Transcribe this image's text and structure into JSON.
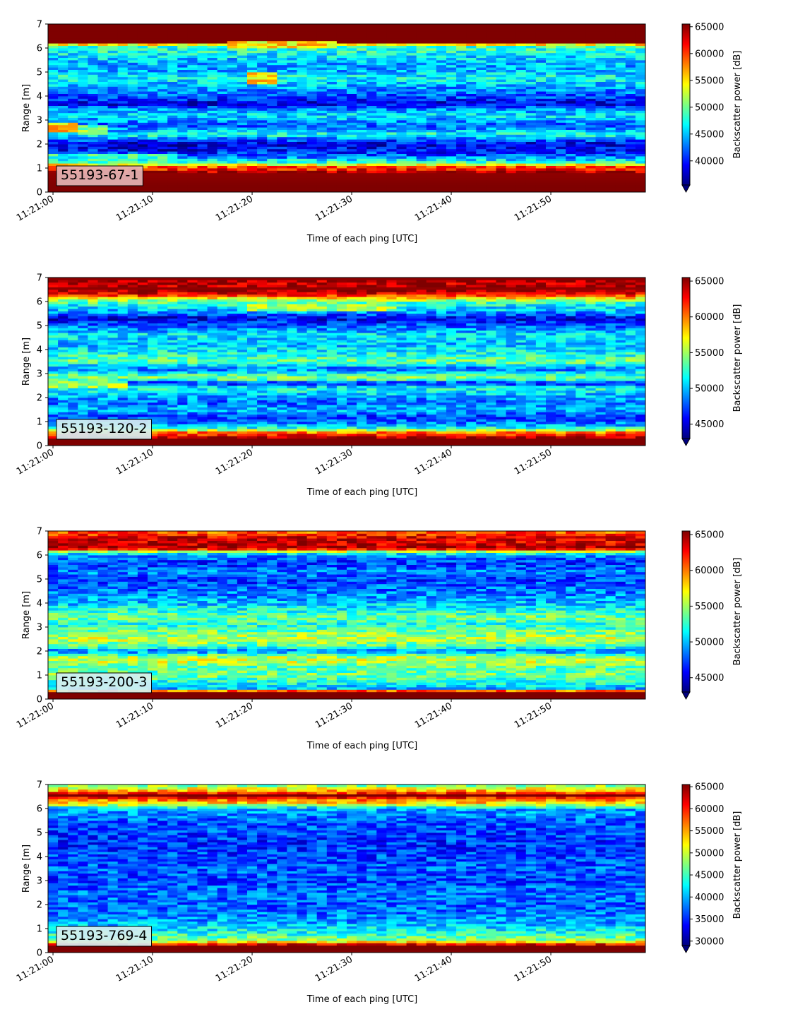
{
  "figure": {
    "panel_count": 4
  },
  "colormap": [
    "#00007f",
    "#0000ff",
    "#007fff",
    "#00ffff",
    "#7fff7f",
    "#ffff00",
    "#ff7f00",
    "#ff0000",
    "#7f0000"
  ],
  "chart_data": [
    {
      "type": "heatmap",
      "label": "55193-67-1",
      "label_bg": "#e4b4b4",
      "xlabel": "Time of each ping [UTC]",
      "ylabel": "Range [m]",
      "colorbar_label": "Backscatter power [dB]",
      "x_tick_labels": [
        "11:21:00",
        "11:21:10",
        "11:21:20",
        "11:21:30",
        "11:21:40",
        "11:21:50"
      ],
      "x_tick_seconds": [
        0,
        10,
        20,
        30,
        40,
        50
      ],
      "xlim_seconds": [
        -0.5,
        59.5
      ],
      "y_ticks": [
        0,
        1,
        2,
        3,
        4,
        5,
        6,
        7
      ],
      "ylim": [
        0,
        7
      ],
      "colorbar_ticks": [
        40000,
        45000,
        50000,
        55000,
        60000,
        65000
      ],
      "clim": [
        35500,
        65500
      ],
      "colorbar_extend": "min",
      "range_profile": [
        [
          0.0,
          65500
        ],
        [
          0.2,
          65500
        ],
        [
          0.3,
          65500
        ],
        [
          0.8,
          65000
        ],
        [
          1.1,
          58000
        ],
        [
          1.2,
          50000
        ],
        [
          1.4,
          44000
        ],
        [
          1.6,
          41000
        ],
        [
          1.8,
          39500
        ],
        [
          2.0,
          38500
        ],
        [
          2.2,
          42000
        ],
        [
          2.4,
          48000
        ],
        [
          2.6,
          44000
        ],
        [
          2.8,
          42000
        ],
        [
          3.2,
          46000
        ],
        [
          3.5,
          43000
        ],
        [
          3.7,
          38000
        ],
        [
          3.9,
          41000
        ],
        [
          4.2,
          43000
        ],
        [
          4.5,
          45000
        ],
        [
          4.8,
          47000
        ],
        [
          5.1,
          44000
        ],
        [
          5.5,
          45000
        ],
        [
          5.8,
          47000
        ],
        [
          6.1,
          49000
        ],
        [
          6.25,
          65500
        ],
        [
          7.0,
          65500
        ]
      ],
      "features": [
        {
          "t": [
            0,
            2.5
          ],
          "r": [
            2.5,
            2.9
          ],
          "v": 56000
        },
        {
          "t": [
            2.5,
            5
          ],
          "r": [
            2.4,
            2.8
          ],
          "v": 50000
        },
        {
          "t": [
            0,
            12
          ],
          "r": [
            1.3,
            1.6
          ],
          "v": 48000
        },
        {
          "t": [
            20,
            22
          ],
          "r": [
            4.5,
            5.0
          ],
          "v": 55000
        },
        {
          "t": [
            8,
            14
          ],
          "r": [
            1.7,
            2.1
          ],
          "v": 37000
        },
        {
          "t": [
            18,
            28
          ],
          "r": [
            6.0,
            6.25
          ],
          "v": 55000
        }
      ]
    },
    {
      "type": "heatmap",
      "label": "55193-120-2",
      "label_bg": "#d6eef0",
      "xlabel": "Time of each ping [UTC]",
      "ylabel": "Range [m]",
      "colorbar_label": "Backscatter power [dB]",
      "x_tick_labels": [
        "11:21:00",
        "11:21:10",
        "11:21:20",
        "11:21:30",
        "11:21:40",
        "11:21:50"
      ],
      "x_tick_seconds": [
        0,
        10,
        20,
        30,
        40,
        50
      ],
      "xlim_seconds": [
        -0.5,
        59.5
      ],
      "y_ticks": [
        0,
        1,
        2,
        3,
        4,
        5,
        6,
        7
      ],
      "ylim": [
        0,
        7
      ],
      "colorbar_ticks": [
        45000,
        50000,
        55000,
        60000,
        65000
      ],
      "clim": [
        43000,
        65500
      ],
      "colorbar_extend": "min",
      "range_profile": [
        [
          0.0,
          65500
        ],
        [
          0.3,
          65500
        ],
        [
          0.55,
          60000
        ],
        [
          0.7,
          53000
        ],
        [
          0.9,
          49000
        ],
        [
          1.2,
          47000
        ],
        [
          1.5,
          50000
        ],
        [
          1.8,
          48000
        ],
        [
          2.1,
          50000
        ],
        [
          2.4,
          52000
        ],
        [
          2.6,
          46000
        ],
        [
          2.8,
          55000
        ],
        [
          3.0,
          52000
        ],
        [
          3.2,
          48000
        ],
        [
          3.5,
          54000
        ],
        [
          3.8,
          52000
        ],
        [
          4.2,
          50000
        ],
        [
          4.6,
          51000
        ],
        [
          5.0,
          48000
        ],
        [
          5.3,
          45000
        ],
        [
          5.6,
          50000
        ],
        [
          5.9,
          52000
        ],
        [
          6.1,
          56000
        ],
        [
          6.3,
          63000
        ],
        [
          6.5,
          65500
        ],
        [
          6.7,
          64000
        ],
        [
          7.0,
          65500
        ]
      ],
      "features": [
        {
          "t": [
            0,
            7
          ],
          "r": [
            2.4,
            2.7
          ],
          "v": 55000
        },
        {
          "t": [
            20,
            34
          ],
          "r": [
            5.6,
            5.9
          ],
          "v": 55000
        }
      ]
    },
    {
      "type": "heatmap",
      "label": "55193-200-3",
      "label_bg": "#d6eef0",
      "xlabel": "Time of each ping [UTC]",
      "ylabel": "Range [m]",
      "colorbar_label": "Backscatter power [dB]",
      "x_tick_labels": [
        "11:21:00",
        "11:21:10",
        "11:21:20",
        "11:21:30",
        "11:21:40",
        "11:21:50"
      ],
      "x_tick_seconds": [
        0,
        10,
        20,
        30,
        40,
        50
      ],
      "xlim_seconds": [
        -0.5,
        59.5
      ],
      "y_ticks": [
        0,
        1,
        2,
        3,
        4,
        5,
        6,
        7
      ],
      "ylim": [
        0,
        7
      ],
      "colorbar_ticks": [
        45000,
        50000,
        55000,
        60000,
        65000
      ],
      "clim": [
        43000,
        65500
      ],
      "colorbar_extend": "min",
      "range_profile": [
        [
          0.0,
          65500
        ],
        [
          0.3,
          65500
        ],
        [
          0.45,
          50000
        ],
        [
          0.7,
          52000
        ],
        [
          1.0,
          54000
        ],
        [
          1.3,
          53000
        ],
        [
          1.6,
          56000
        ],
        [
          1.8,
          55000
        ],
        [
          2.0,
          48000
        ],
        [
          2.2,
          53000
        ],
        [
          2.5,
          56000
        ],
        [
          2.8,
          54000
        ],
        [
          3.1,
          52000
        ],
        [
          3.4,
          54000
        ],
        [
          3.7,
          52000
        ],
        [
          4.0,
          50000
        ],
        [
          4.3,
          49000
        ],
        [
          4.7,
          48000
        ],
        [
          5.0,
          47000
        ],
        [
          5.3,
          49000
        ],
        [
          5.6,
          47000
        ],
        [
          5.9,
          48000
        ],
        [
          6.1,
          52000
        ],
        [
          6.3,
          65500
        ],
        [
          6.5,
          63000
        ],
        [
          6.7,
          64000
        ],
        [
          7.0,
          60000
        ]
      ],
      "features": []
    },
    {
      "type": "heatmap",
      "label": "55193-769-4",
      "label_bg": "#d6eef0",
      "xlabel": "Time of each ping [UTC]",
      "ylabel": "Range [m]",
      "colorbar_label": "Backscatter power [dB]",
      "x_tick_labels": [
        "11:21:00",
        "11:21:10",
        "11:21:20",
        "11:21:30",
        "11:21:40",
        "11:21:50"
      ],
      "x_tick_seconds": [
        0,
        10,
        20,
        30,
        40,
        50
      ],
      "xlim_seconds": [
        -0.5,
        59.5
      ],
      "y_ticks": [
        0,
        1,
        2,
        3,
        4,
        5,
        6,
        7
      ],
      "ylim": [
        0,
        7
      ],
      "colorbar_ticks": [
        30000,
        35000,
        40000,
        45000,
        50000,
        55000,
        60000,
        65000
      ],
      "clim": [
        29000,
        65500
      ],
      "colorbar_extend": "min",
      "range_profile": [
        [
          0.0,
          65500
        ],
        [
          0.3,
          65500
        ],
        [
          0.5,
          48000
        ],
        [
          0.8,
          44000
        ],
        [
          1.2,
          40000
        ],
        [
          1.6,
          38000
        ],
        [
          2.0,
          37000
        ],
        [
          2.5,
          38000
        ],
        [
          3.0,
          36000
        ],
        [
          3.5,
          37000
        ],
        [
          4.0,
          36000
        ],
        [
          4.5,
          35000
        ],
        [
          5.0,
          36000
        ],
        [
          5.5,
          37000
        ],
        [
          6.0,
          40000
        ],
        [
          6.2,
          52000
        ],
        [
          6.4,
          58000
        ],
        [
          6.55,
          65500
        ],
        [
          6.7,
          56000
        ],
        [
          7.0,
          46000
        ]
      ],
      "features": []
    }
  ]
}
